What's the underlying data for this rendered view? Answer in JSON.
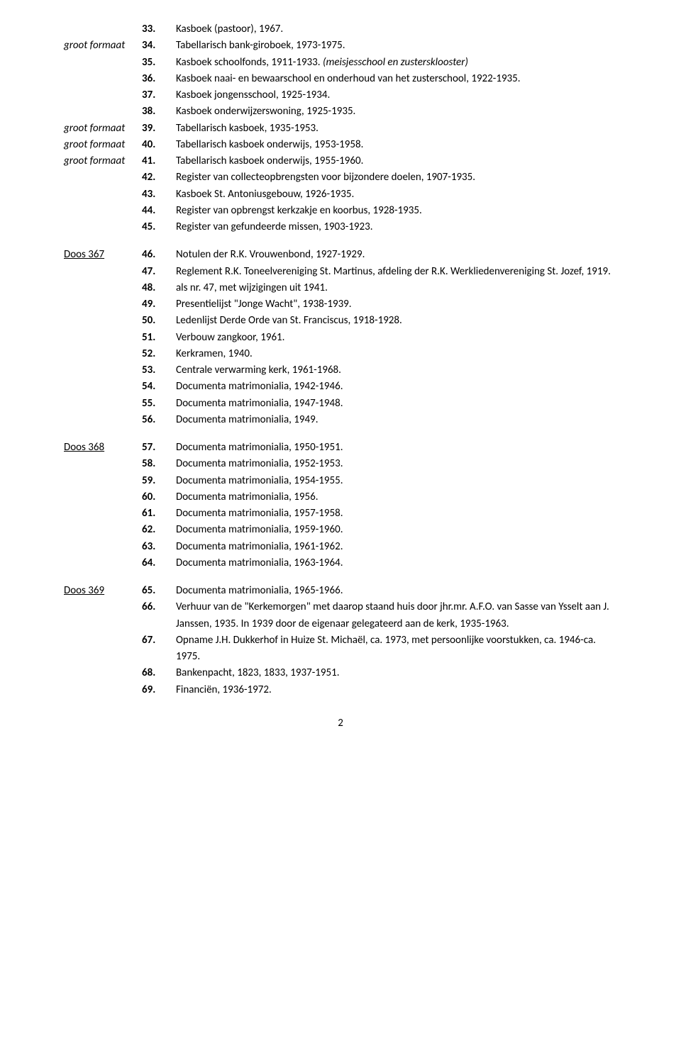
{
  "page_number": "2",
  "sections": [
    {
      "label": "",
      "rows": [
        {
          "prefix": "",
          "num": "33.",
          "desc": "Kasboek (pastoor), 1967.",
          "note": ""
        },
        {
          "prefix": "groot formaat",
          "num": "34.",
          "desc": "Tabellarisch bank-giroboek, 1973-1975.",
          "note": ""
        },
        {
          "prefix": "",
          "num": "35.",
          "desc": "Kasboek schoolfonds, 1911-1933. ",
          "note": "(meisjesschool en zustersklooster)"
        },
        {
          "prefix": "",
          "num": "36.",
          "desc": "Kasboek naai- en bewaarschool en onderhoud van het zusterschool, 1922-1935.",
          "note": ""
        },
        {
          "prefix": "",
          "num": "37.",
          "desc": "Kasboek jongensschool, 1925-1934.",
          "note": ""
        },
        {
          "prefix": "",
          "num": "38.",
          "desc": "Kasboek onderwijzerswoning, 1925-1935.",
          "note": ""
        },
        {
          "prefix": "groot formaat",
          "num": "39.",
          "desc": "Tabellarisch kasboek, 1935-1953.",
          "note": ""
        },
        {
          "prefix": "groot formaat",
          "num": "40.",
          "desc": "Tabellarisch kasboek onderwijs, 1953-1958.",
          "note": ""
        },
        {
          "prefix": "groot formaat",
          "num": "41.",
          "desc": "Tabellarisch kasboek onderwijs, 1955-1960.",
          "note": ""
        },
        {
          "prefix": "",
          "num": "42.",
          "desc": "Register van collecteopbrengsten voor bijzondere doelen, 1907-1935.",
          "note": ""
        },
        {
          "prefix": "",
          "num": "43.",
          "desc": "Kasboek St. Antoniusgebouw, 1926-1935.",
          "note": ""
        },
        {
          "prefix": "",
          "num": "44.",
          "desc": "Register van opbrengst kerkzakje en koorbus, 1928-1935.",
          "note": ""
        },
        {
          "prefix": "",
          "num": "45.",
          "desc": "Register van gefundeerde missen, 1903-1923.",
          "note": ""
        }
      ]
    },
    {
      "label": "Doos 367",
      "rows": [
        {
          "prefix": "",
          "num": "46.",
          "desc": "Notulen der R.K. Vrouwenbond, 1927-1929.",
          "note": ""
        },
        {
          "prefix": "",
          "num": "47.",
          "desc": "Reglement R.K. Toneelvereniging St. Martinus, afdeling der R.K. Werkliedenvereniging St. Jozef, 1919.",
          "note": ""
        },
        {
          "prefix": "",
          "num": "48.",
          "desc": "als nr. 47, met wijzigingen uit 1941.",
          "note": ""
        },
        {
          "prefix": "",
          "num": "49.",
          "desc": "Presentielijst \"Jonge Wacht\", 1938-1939.",
          "note": ""
        },
        {
          "prefix": "",
          "num": "50.",
          "desc": "Ledenlijst Derde Orde van St. Franciscus, 1918-1928.",
          "note": ""
        },
        {
          "prefix": "",
          "num": "51.",
          "desc": "Verbouw zangkoor, 1961.",
          "note": ""
        },
        {
          "prefix": "",
          "num": "52.",
          "desc": "Kerkramen, 1940.",
          "note": ""
        },
        {
          "prefix": "",
          "num": "53.",
          "desc": "Centrale verwarming kerk, 1961-1968.",
          "note": ""
        },
        {
          "prefix": "",
          "num": "54.",
          "desc": "Documenta matrimonialia, 1942-1946.",
          "note": ""
        },
        {
          "prefix": "",
          "num": "55.",
          "desc": "Documenta matrimonialia, 1947-1948.",
          "note": ""
        },
        {
          "prefix": "",
          "num": "56.",
          "desc": "Documenta matrimonialia, 1949.",
          "note": ""
        }
      ]
    },
    {
      "label": "Doos 368",
      "rows": [
        {
          "prefix": "",
          "num": "57.",
          "desc": "Documenta matrimonialia, 1950-1951.",
          "note": ""
        },
        {
          "prefix": "",
          "num": "58.",
          "desc": "Documenta matrimonialia, 1952-1953.",
          "note": ""
        },
        {
          "prefix": "",
          "num": "59.",
          "desc": "Documenta matrimonialia, 1954-1955.",
          "note": ""
        },
        {
          "prefix": "",
          "num": "60.",
          "desc": "Documenta matrimonialia, 1956.",
          "note": ""
        },
        {
          "prefix": "",
          "num": "61.",
          "desc": "Documenta matrimonialia, 1957-1958.",
          "note": ""
        },
        {
          "prefix": "",
          "num": "62.",
          "desc": "Documenta matrimonialia, 1959-1960.",
          "note": ""
        },
        {
          "prefix": "",
          "num": "63.",
          "desc": "Documenta matrimonialia, 1961-1962.",
          "note": ""
        },
        {
          "prefix": "",
          "num": "64.",
          "desc": "Documenta matrimonialia, 1963-1964.",
          "note": ""
        }
      ]
    },
    {
      "label": "Doos 369",
      "rows": [
        {
          "prefix": "",
          "num": "65.",
          "desc": "Documenta matrimonialia, 1965-1966.",
          "note": ""
        },
        {
          "prefix": "",
          "num": "66.",
          "desc": "Verhuur van de  \"Kerkemorgen\" met daarop staand huis door jhr.mr. A.F.O. van Sasse van Ysselt aan J. Janssen, 1935. In 1939 door de eigenaar gelegateerd aan de kerk, 1935-1963.",
          "note": ""
        },
        {
          "prefix": "",
          "num": "67.",
          "desc": "Opname J.H. Dukkerhof in Huize St. Michaël, ca. 1973, met persoonlijke voorstukken, ca. 1946-ca. 1975.",
          "note": ""
        },
        {
          "prefix": "",
          "num": "68.",
          "desc": "Bankenpacht, 1823, 1833, 1937-1951.",
          "note": ""
        },
        {
          "prefix": "",
          "num": "69.",
          "desc": "Financiën, 1936-1972.",
          "note": ""
        }
      ]
    }
  ]
}
